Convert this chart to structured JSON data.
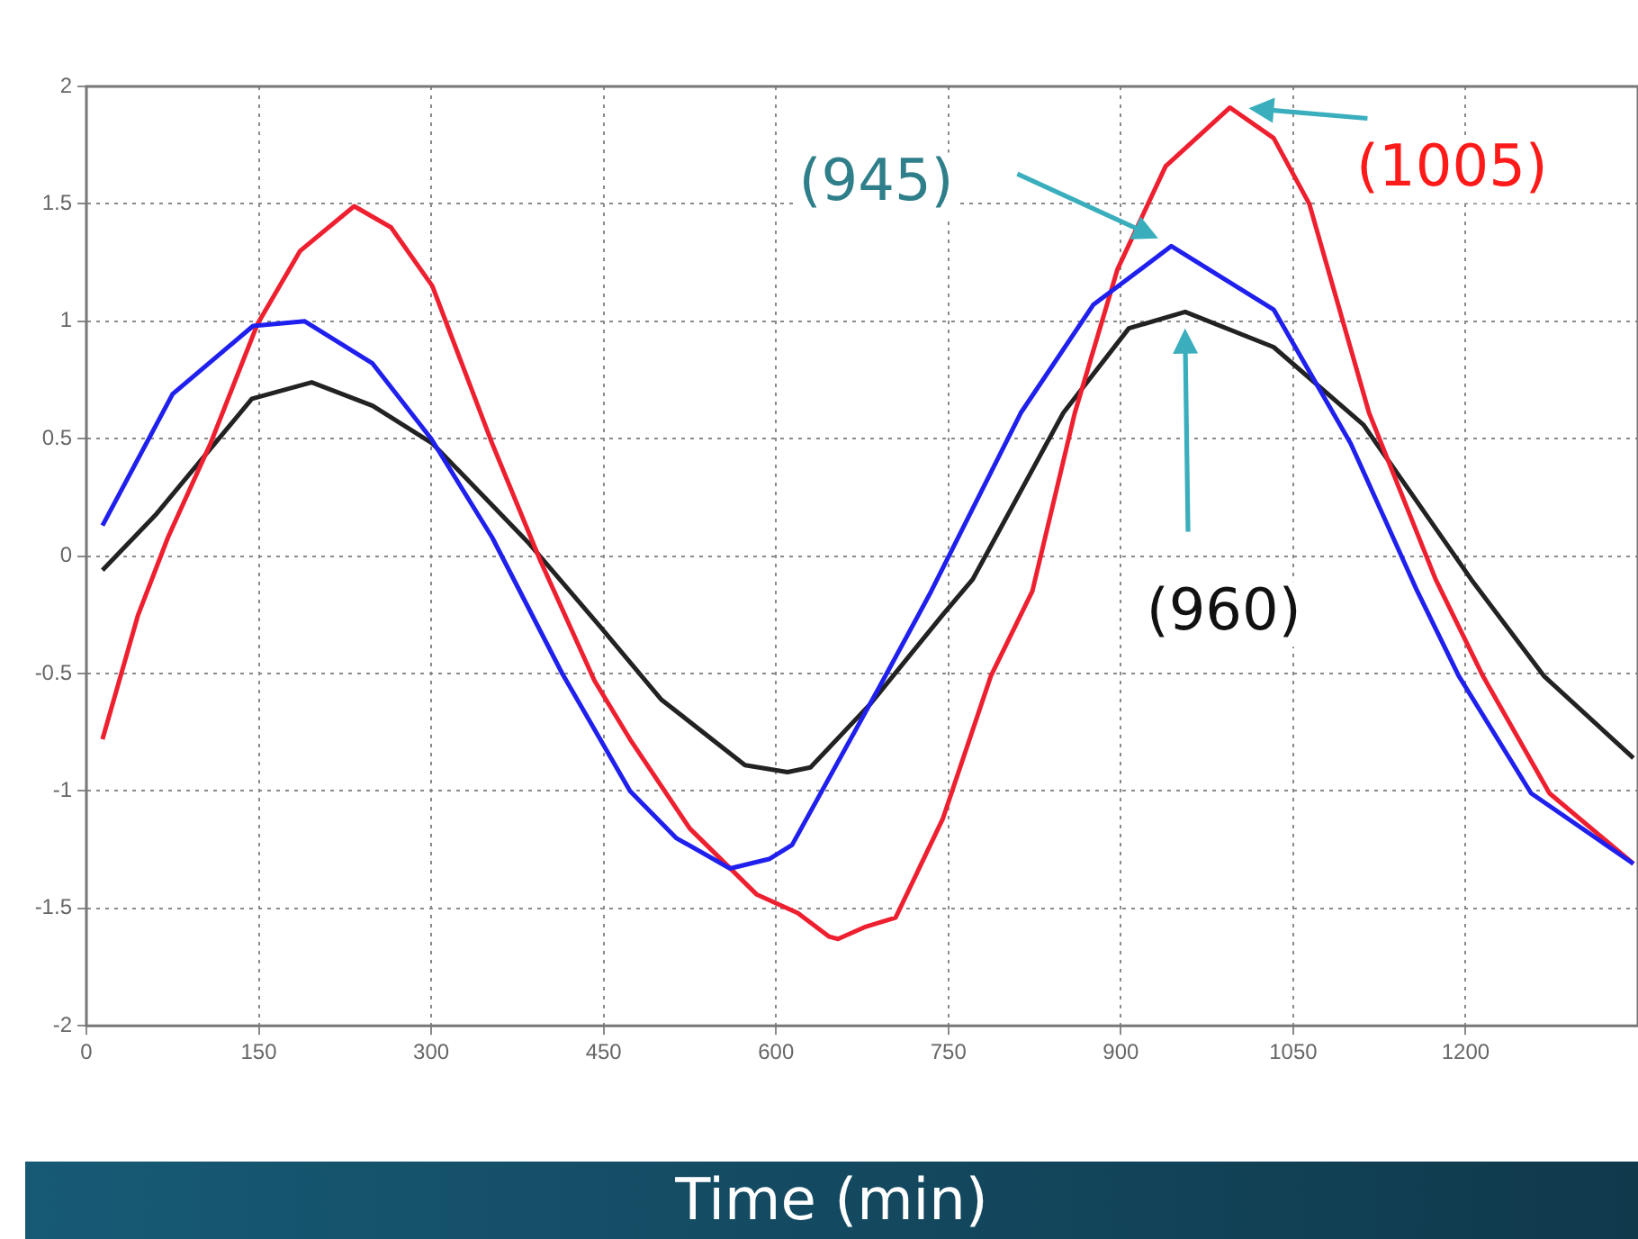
{
  "chart_data": {
    "type": "line",
    "xlabel": "Time (min)",
    "xlim": [
      0,
      1350
    ],
    "xticks": [
      0,
      150,
      300,
      450,
      600,
      750,
      900,
      1050,
      1200
    ],
    "ylim": [
      -2,
      2
    ],
    "yticks": [
      -2,
      -1.5,
      -1,
      -0.5,
      0,
      0.5,
      1,
      1.5,
      2
    ],
    "grid": true,
    "legend": false,
    "marker": "none",
    "line_style": "solid",
    "series": [
      {
        "color": "#2020ee",
        "x": [
          14,
          75,
          145,
          190,
          249,
          300,
          353,
          414,
          473,
          513,
          560,
          594,
          614,
          693,
          735,
          813,
          876,
          944,
          1033,
          1100,
          1158,
          1194,
          1257,
          1346
        ],
        "values": [
          0.13,
          0.69,
          0.98,
          1.0,
          0.82,
          0.5,
          0.08,
          -0.5,
          -1.0,
          -1.2,
          -1.33,
          -1.29,
          -1.23,
          -0.53,
          -0.15,
          0.61,
          1.07,
          1.32,
          1.05,
          0.48,
          -0.15,
          -0.51,
          -1.01,
          -1.31
        ]
      },
      {
        "color": "#ee2030",
        "x": [
          14,
          45,
          71,
          108,
          149,
          186,
          233,
          265,
          301,
          353,
          395,
          442,
          473,
          525,
          583,
          619,
          646,
          654,
          677,
          704,
          745,
          787,
          823,
          860,
          897,
          939,
          995,
          1033,
          1064,
          1116,
          1174,
          1215,
          1273,
          1346
        ],
        "values": [
          -0.78,
          -0.25,
          0.08,
          0.48,
          0.99,
          1.3,
          1.49,
          1.4,
          1.15,
          0.48,
          -0.02,
          -0.53,
          -0.78,
          -1.16,
          -1.44,
          -1.52,
          -1.62,
          -1.63,
          -1.58,
          -1.54,
          -1.12,
          -0.51,
          -0.15,
          0.61,
          1.22,
          1.66,
          1.91,
          1.78,
          1.5,
          0.61,
          -0.1,
          -0.51,
          -1.01,
          -1.31
        ]
      },
      {
        "color": "#222222",
        "x": [
          14,
          61,
          144,
          196,
          249,
          301,
          384,
          447,
          500,
          573,
          610,
          630,
          682,
          745,
          771,
          850,
          907,
          956,
          1033,
          1111,
          1205,
          1268,
          1346
        ],
        "values": [
          -0.06,
          0.18,
          0.67,
          0.74,
          0.64,
          0.48,
          0.06,
          -0.3,
          -0.61,
          -0.89,
          -0.92,
          -0.9,
          -0.63,
          -0.25,
          -0.1,
          0.61,
          0.97,
          1.04,
          0.89,
          0.56,
          -0.1,
          -0.51,
          -0.86
        ]
      }
    ],
    "annotations": [
      "(945)",
      {
        "text": "(1005)",
        "x": 1005,
        "y": 1.91
      },
      "(960)"
    ]
  }
}
